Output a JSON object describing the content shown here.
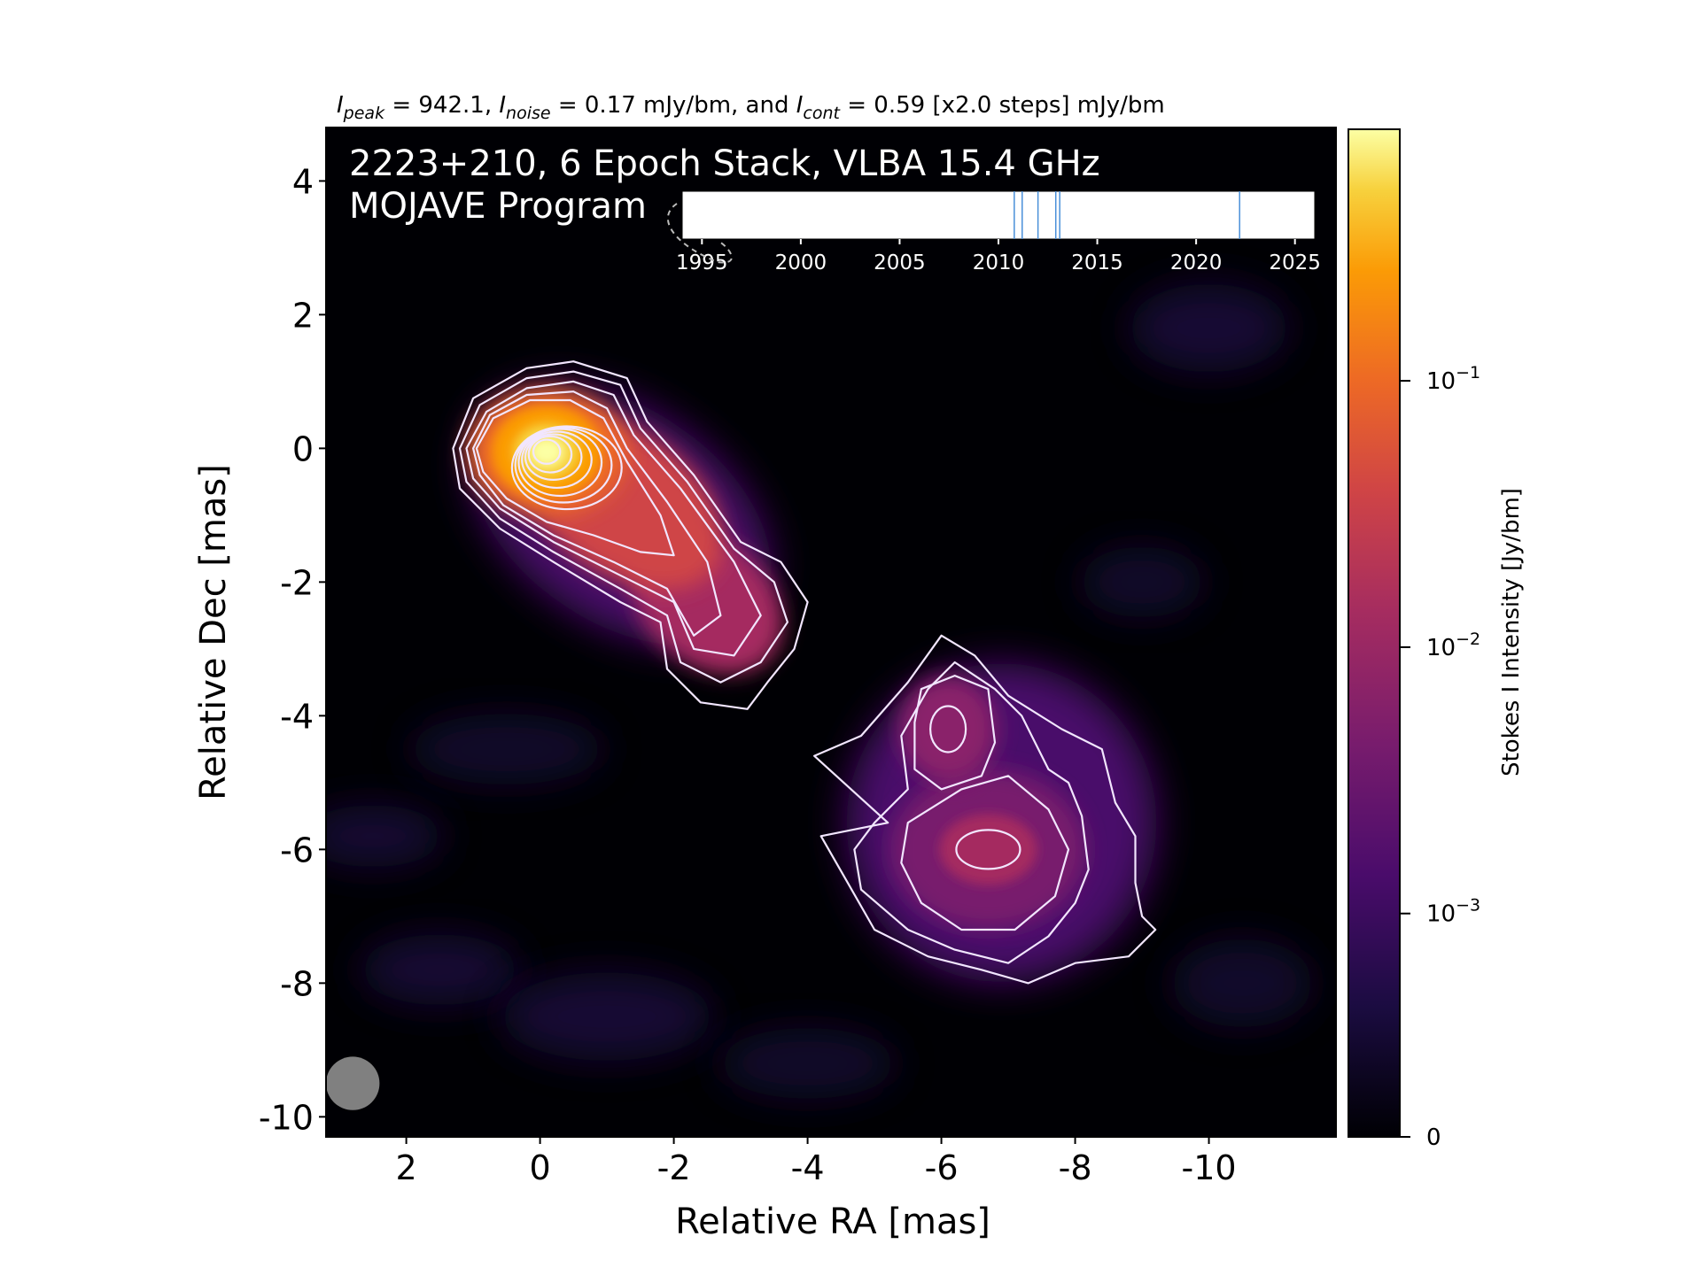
{
  "chart_data": {
    "type": "heatmap",
    "header": {
      "i_peak_label": "I",
      "i_peak_sub": "peak",
      "i_peak_text": " = 942.1, ",
      "i_noise_label": "I",
      "i_noise_sub": "noise",
      "i_noise_text": " = 0.17 mJy/bm, and ",
      "i_cont_label": "I",
      "i_cont_sub": "cont",
      "i_cont_text": " = 0.59 [x2.0 steps] mJy/bm"
    },
    "annotation": {
      "line1": "2223+210, 6 Epoch Stack, VLBA 15.4 GHz",
      "line2": "MOJAVE Program"
    },
    "xlabel": "Relative RA [mas]",
    "ylabel": "Relative Dec [mas]",
    "xlim": [
      3.2,
      -11.9
    ],
    "ylim": [
      -10.3,
      4.8
    ],
    "x_ticks": [
      2,
      0,
      -2,
      -4,
      -6,
      -8,
      -10
    ],
    "y_ticks": [
      4,
      2,
      0,
      -2,
      -4,
      -6,
      -8,
      -10
    ],
    "colorbar": {
      "label": "Stokes I Intensity [Jy/bm]",
      "scale": "log",
      "colormap": "inferno",
      "ticks": [
        {
          "value": 0.1,
          "base": "10",
          "exp": "−1"
        },
        {
          "value": 0.01,
          "base": "10",
          "exp": "−2"
        },
        {
          "value": 0.001,
          "base": "10",
          "exp": "−3"
        },
        {
          "value": 0,
          "base": "0",
          "exp": ""
        }
      ]
    },
    "epoch_timeline": {
      "xlim": [
        1994,
        2026
      ],
      "ticks": [
        1995,
        2000,
        2005,
        2010,
        2015,
        2020,
        2025
      ],
      "epochs": [
        2010.8,
        2011.2,
        2012.0,
        2012.9,
        2013.1,
        2022.2
      ]
    },
    "components": [
      {
        "name": "core",
        "ra": -0.1,
        "dec": -0.05
      },
      {
        "name": "jet",
        "ra": -2.5,
        "dec": -2.3
      },
      {
        "name": "northern knot",
        "ra": -6.1,
        "dec": -4.2
      },
      {
        "name": "southern lobe",
        "ra": -6.7,
        "dec": -6.0
      }
    ],
    "beam": {
      "ra": 2.8,
      "dec": -9.5,
      "major_mas": 0.8,
      "minor_mas": 0.8
    },
    "colors": {
      "background": "#000004",
      "contour": "#ffffff",
      "beam": "#808080",
      "epoch_line": "#4a90d9"
    }
  }
}
